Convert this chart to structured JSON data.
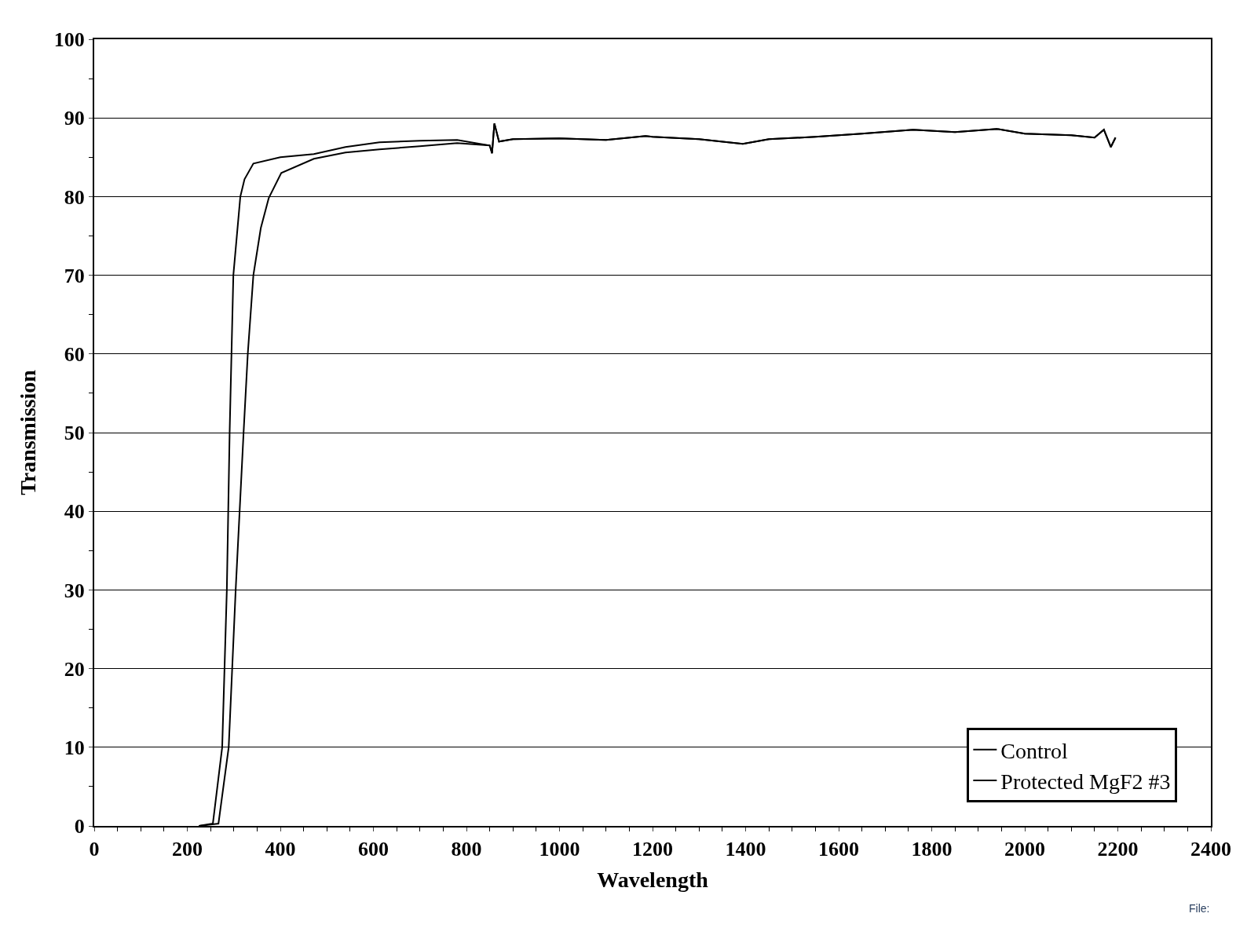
{
  "chart_data": {
    "type": "line",
    "xlabel": "Wavelength",
    "ylabel": "Transmission",
    "annotations": [
      "File:"
    ],
    "xlim": [
      0,
      2400
    ],
    "xticks": [
      0,
      200,
      400,
      600,
      800,
      1000,
      1200,
      1400,
      1600,
      1800,
      2000,
      2200,
      2400
    ],
    "ylim": [
      0,
      100
    ],
    "yticks": [
      0,
      10,
      20,
      30,
      40,
      50,
      60,
      70,
      80,
      90,
      100
    ],
    "grid": "y",
    "legend": "bottom right",
    "marker": "none",
    "line_style": "solid",
    "series": [
      {
        "name": "Control",
        "color": "#000000",
        "x": [
          225,
          255,
          275,
          285,
          291,
          299,
          314,
          323,
          342,
          400,
          472,
          540,
          613,
          700,
          780,
          850,
          855,
          860,
          870,
          900,
          1000,
          1100,
          1185,
          1200,
          1300,
          1394,
          1450,
          1550,
          1650,
          1760,
          1850,
          1940,
          2000,
          2100,
          2150,
          2170,
          2185,
          2195
        ],
        "values": [
          0,
          0.3,
          10,
          30,
          50,
          70,
          80,
          82.2,
          84.2,
          85.0,
          85.4,
          86.3,
          86.9,
          87.1,
          87.2,
          86.5,
          85.5,
          89.3,
          87,
          87.3,
          87.4,
          87.2,
          87.7,
          87.6,
          87.3,
          86.7,
          87.3,
          87.6,
          88.0,
          88.5,
          88.2,
          88.6,
          88.0,
          87.8,
          87.5,
          88.5,
          86.3,
          87.5
        ]
      },
      {
        "name": "Protected MgF2 #3",
        "color": "#000000",
        "x": [
          225,
          267,
          289,
          304,
          321,
          330,
          342,
          358,
          375,
          402,
          472,
          540,
          613,
          700,
          780,
          850,
          855,
          860,
          870,
          900,
          1000,
          1100,
          1185,
          1200,
          1300,
          1394,
          1450,
          1550,
          1650,
          1760,
          1850,
          1940,
          2000,
          2100,
          2150,
          2170,
          2185,
          2195
        ],
        "values": [
          0,
          0.3,
          10,
          30,
          50,
          60,
          70,
          76,
          79.8,
          83,
          84.8,
          85.6,
          86.0,
          86.4,
          86.8,
          86.5,
          85.5,
          89.3,
          87,
          87.3,
          87.4,
          87.2,
          87.7,
          87.6,
          87.3,
          86.7,
          87.3,
          87.6,
          88.0,
          88.5,
          88.2,
          88.6,
          88.0,
          87.8,
          87.5,
          88.5,
          86.3,
          87.5
        ]
      }
    ]
  }
}
